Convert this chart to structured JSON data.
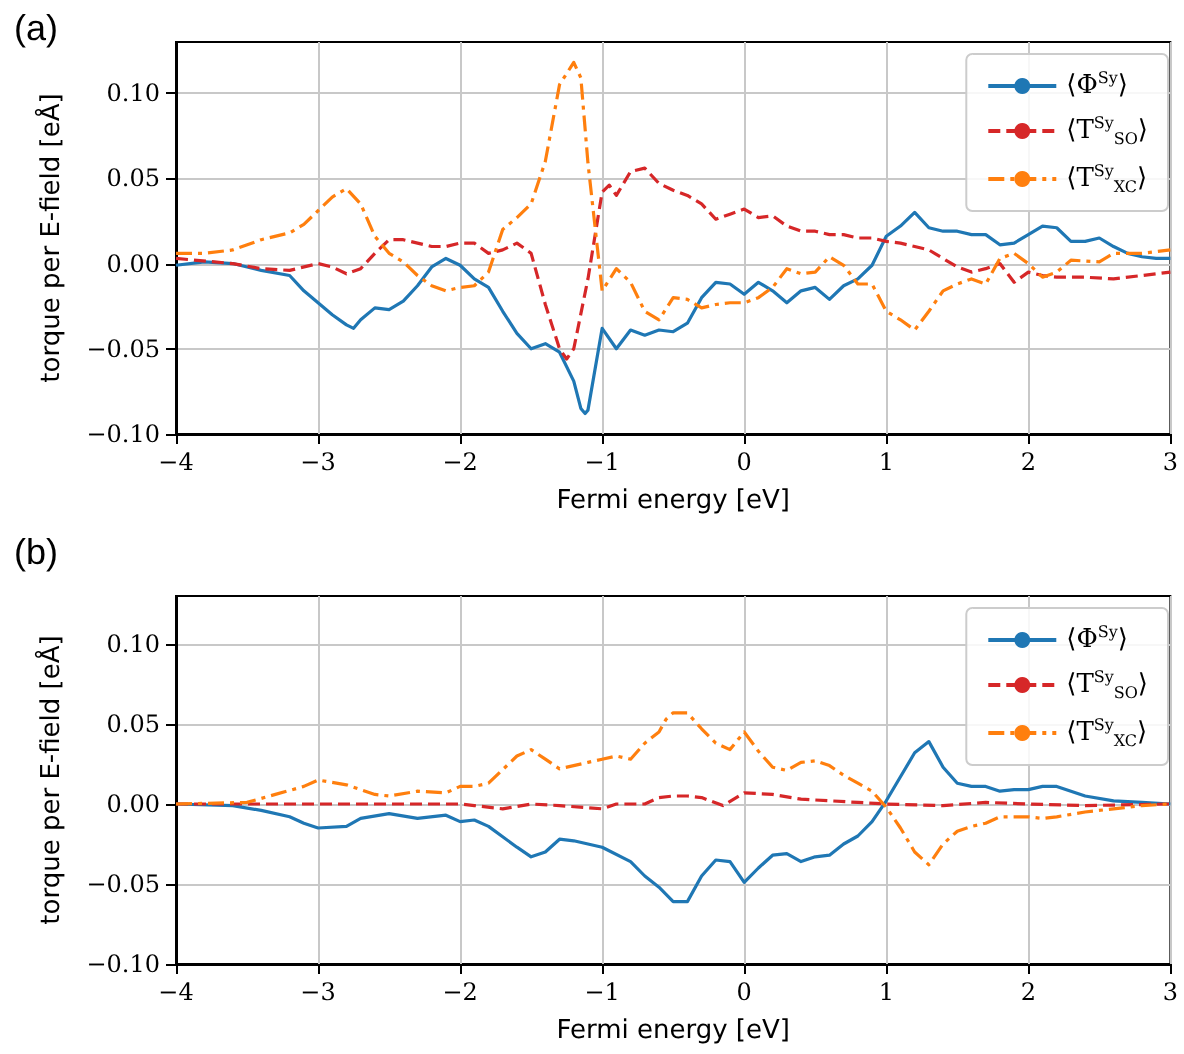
{
  "chart_data": [
    {
      "type": "line",
      "title": "(a)",
      "xlabel": "Fermi energy [eV]",
      "ylabel": "torque per E-field [eÅ]",
      "xlim": [
        -4,
        3
      ],
      "ylim": [
        -0.1,
        0.13
      ],
      "xticks": [
        {
          "value": -4,
          "label": "−4"
        },
        {
          "value": -3,
          "label": "−3"
        },
        {
          "value": -2,
          "label": "−2"
        },
        {
          "value": -1,
          "label": "−1"
        },
        {
          "value": 0,
          "label": "0"
        },
        {
          "value": 1,
          "label": "1"
        },
        {
          "value": 2,
          "label": "2"
        },
        {
          "value": 3,
          "label": "3"
        }
      ],
      "yticks": [
        {
          "value": -0.1,
          "label": "−0.10"
        },
        {
          "value": -0.05,
          "label": "−0.05"
        },
        {
          "value": 0,
          "label": "0.00"
        },
        {
          "value": 0.05,
          "label": "0.05"
        },
        {
          "value": 0.1,
          "label": "0.10"
        }
      ],
      "grid": true,
      "legend": "top right",
      "marker": "none",
      "series": [
        {
          "name": "⟨Φ$^{Sy}$⟩",
          "color": "#1f77b4",
          "line_style": "solid",
          "x": [
            -4,
            -3.8,
            -3.6,
            -3.4,
            -3.2,
            -3.1,
            -3,
            -2.9,
            -2.8,
            -2.75,
            -2.7,
            -2.6,
            -2.5,
            -2.4,
            -2.3,
            -2.2,
            -2.1,
            -2,
            -1.9,
            -1.8,
            -1.7,
            -1.6,
            -1.5,
            -1.4,
            -1.3,
            -1.2,
            -1.15,
            -1.12,
            -1.1,
            -1,
            -0.9,
            -0.8,
            -0.7,
            -0.6,
            -0.5,
            -0.4,
            -0.3,
            -0.2,
            -0.1,
            0,
            0.1,
            0.2,
            0.3,
            0.4,
            0.5,
            0.6,
            0.7,
            0.8,
            0.9,
            1,
            1.1,
            1.2,
            1.3,
            1.4,
            1.5,
            1.6,
            1.7,
            1.8,
            1.9,
            2,
            2.1,
            2.2,
            2.3,
            2.4,
            2.5,
            2.6,
            2.7,
            2.8,
            2.9,
            3
          ],
          "values": [
            -0.001,
            0.001,
            0,
            -0.004,
            -0.007,
            -0.016,
            -0.023,
            -0.03,
            -0.036,
            -0.038,
            -0.033,
            -0.026,
            -0.027,
            -0.022,
            -0.013,
            -0.002,
            0.003,
            -0.001,
            -0.009,
            -0.014,
            -0.028,
            -0.041,
            -0.05,
            -0.047,
            -0.052,
            -0.069,
            -0.085,
            -0.088,
            -0.086,
            -0.038,
            -0.05,
            -0.039,
            -0.042,
            -0.039,
            -0.04,
            -0.035,
            -0.02,
            -0.011,
            -0.012,
            -0.018,
            -0.011,
            -0.016,
            -0.023,
            -0.016,
            -0.014,
            -0.021,
            -0.013,
            -0.009,
            -0.001,
            0.016,
            0.022,
            0.03,
            0.021,
            0.019,
            0.019,
            0.017,
            0.017,
            0.011,
            0.012,
            0.017,
            0.022,
            0.021,
            0.013,
            0.013,
            0.015,
            0.01,
            0.006,
            0.004,
            0.003,
            0.003
          ]
        },
        {
          "name": "⟨T$^{Sy}$$_{SO}$⟩",
          "color": "#d62728",
          "line_style": "dashed",
          "x": [
            -4,
            -3.6,
            -3.4,
            -3.2,
            -3,
            -2.9,
            -2.8,
            -2.7,
            -2.6,
            -2.5,
            -2.4,
            -2.2,
            -2.1,
            -2,
            -1.9,
            -1.8,
            -1.7,
            -1.6,
            -1.5,
            -1.4,
            -1.3,
            -1.25,
            -1.2,
            -1.1,
            -1,
            -0.95,
            -0.9,
            -0.8,
            -0.7,
            -0.6,
            -0.5,
            -0.4,
            -0.3,
            -0.2,
            -0.1,
            0,
            0.1,
            0.2,
            0.3,
            0.4,
            0.5,
            0.6,
            0.7,
            0.8,
            0.9,
            1,
            1.1,
            1.2,
            1.3,
            1.4,
            1.5,
            1.6,
            1.7,
            1.8,
            1.9,
            2,
            2.1,
            2.2,
            2.4,
            2.6,
            2.8,
            3
          ],
          "values": [
            0.003,
            0,
            -0.003,
            -0.004,
            0,
            -0.002,
            -0.006,
            -0.003,
            0.006,
            0.014,
            0.014,
            0.01,
            0.01,
            0.012,
            0.012,
            0.006,
            0.008,
            0.012,
            0.006,
            -0.024,
            -0.05,
            -0.056,
            -0.05,
            -0.009,
            0.042,
            0.046,
            0.04,
            0.054,
            0.056,
            0.047,
            0.043,
            0.04,
            0.035,
            0.026,
            0.029,
            0.032,
            0.027,
            0.028,
            0.022,
            0.019,
            0.019,
            0.017,
            0.017,
            0.015,
            0.015,
            0.013,
            0.012,
            0.01,
            0.008,
            0.003,
            -0.002,
            -0.005,
            -0.003,
            0,
            -0.011,
            -0.005,
            -0.007,
            -0.008,
            -0.008,
            -0.009,
            -0.007,
            -0.005
          ]
        },
        {
          "name": "⟨T$^{Sy}$$_{XC}$⟩",
          "color": "#ff7f0e",
          "line_style": "dashdot",
          "x": [
            -4,
            -3.8,
            -3.6,
            -3.4,
            -3.2,
            -3.1,
            -3,
            -2.9,
            -2.8,
            -2.7,
            -2.6,
            -2.5,
            -2.4,
            -2.3,
            -2.2,
            -2.1,
            -2,
            -1.9,
            -1.8,
            -1.7,
            -1.6,
            -1.5,
            -1.4,
            -1.3,
            -1.2,
            -1.15,
            -1.1,
            -1,
            -0.9,
            -0.8,
            -0.7,
            -0.6,
            -0.5,
            -0.4,
            -0.3,
            -0.2,
            -0.1,
            0,
            0.1,
            0.2,
            0.3,
            0.4,
            0.5,
            0.6,
            0.7,
            0.8,
            0.9,
            1,
            1.1,
            1.2,
            1.3,
            1.4,
            1.5,
            1.6,
            1.7,
            1.8,
            1.9,
            2,
            2.1,
            2.2,
            2.3,
            2.5,
            2.6,
            2.8,
            3
          ],
          "values": [
            0.006,
            0.006,
            0.008,
            0.014,
            0.018,
            0.023,
            0.031,
            0.039,
            0.044,
            0.035,
            0.016,
            0.006,
            0.001,
            -0.007,
            -0.013,
            -0.016,
            -0.014,
            -0.013,
            -0.005,
            0.02,
            0.027,
            0.035,
            0.06,
            0.105,
            0.118,
            0.109,
            0.059,
            -0.016,
            -0.003,
            -0.011,
            -0.028,
            -0.033,
            -0.02,
            -0.021,
            -0.026,
            -0.024,
            -0.023,
            -0.023,
            -0.02,
            -0.014,
            -0.003,
            -0.006,
            -0.005,
            0.004,
            -0.001,
            -0.012,
            -0.012,
            -0.028,
            -0.033,
            -0.039,
            -0.028,
            -0.016,
            -0.012,
            -0.009,
            -0.012,
            0.003,
            0.006,
            0,
            -0.008,
            -0.005,
            0.002,
            0.001,
            0.006,
            0.006,
            0.008
          ]
        }
      ]
    },
    {
      "type": "line",
      "title": "(b)",
      "xlabel": "Fermi energy [eV]",
      "ylabel": "torque per E-field [eÅ]",
      "xlim": [
        -4,
        3
      ],
      "ylim": [
        -0.1,
        0.13
      ],
      "xticks": [
        {
          "value": -4,
          "label": "−4"
        },
        {
          "value": -3,
          "label": "−3"
        },
        {
          "value": -2,
          "label": "−2"
        },
        {
          "value": -1,
          "label": "−1"
        },
        {
          "value": 0,
          "label": "0"
        },
        {
          "value": 1,
          "label": "1"
        },
        {
          "value": 2,
          "label": "2"
        },
        {
          "value": 3,
          "label": "3"
        }
      ],
      "yticks": [
        {
          "value": -0.1,
          "label": "−0.10"
        },
        {
          "value": -0.05,
          "label": "−0.05"
        },
        {
          "value": 0,
          "label": "0.00"
        },
        {
          "value": 0.05,
          "label": "0.05"
        },
        {
          "value": 0.1,
          "label": "0.10"
        }
      ],
      "grid": true,
      "legend": "top right",
      "marker": "none",
      "series": [
        {
          "name": "⟨Φ$^{Sy}$⟩",
          "color": "#1f77b4",
          "line_style": "solid",
          "x": [
            -4,
            -3.6,
            -3.4,
            -3.2,
            -3.1,
            -3,
            -2.8,
            -2.7,
            -2.5,
            -2.3,
            -2.1,
            -2,
            -1.9,
            -1.8,
            -1.6,
            -1.5,
            -1.4,
            -1.3,
            -1.2,
            -1,
            -0.8,
            -0.7,
            -0.6,
            -0.5,
            -0.4,
            -0.3,
            -0.2,
            -0.1,
            0,
            0.1,
            0.2,
            0.3,
            0.4,
            0.5,
            0.6,
            0.7,
            0.8,
            0.9,
            1,
            1.1,
            1.2,
            1.3,
            1.4,
            1.5,
            1.6,
            1.7,
            1.8,
            1.9,
            2,
            2.1,
            2.2,
            2.3,
            2.4,
            2.6,
            2.8,
            3
          ],
          "values": [
            0,
            -0.001,
            -0.004,
            -0.008,
            -0.012,
            -0.015,
            -0.014,
            -0.009,
            -0.006,
            -0.009,
            -0.007,
            -0.011,
            -0.01,
            -0.014,
            -0.027,
            -0.033,
            -0.03,
            -0.022,
            -0.023,
            -0.027,
            -0.036,
            -0.045,
            -0.052,
            -0.061,
            -0.061,
            -0.045,
            -0.035,
            -0.036,
            -0.049,
            -0.04,
            -0.032,
            -0.031,
            -0.036,
            -0.033,
            -0.032,
            -0.025,
            -0.02,
            -0.011,
            0.002,
            0.017,
            0.032,
            0.039,
            0.023,
            0.013,
            0.011,
            0.011,
            0.008,
            0.009,
            0.009,
            0.011,
            0.011,
            0.008,
            0.005,
            0.002,
            0.001,
            0
          ]
        },
        {
          "name": "⟨T$^{Sy}$$_{SO}$⟩",
          "color": "#d62728",
          "line_style": "dashed",
          "x": [
            -4,
            -3,
            -2,
            -1.9,
            -1.7,
            -1.5,
            -1.3,
            -1,
            -0.9,
            -0.7,
            -0.6,
            -0.5,
            -0.4,
            -0.3,
            -0.15,
            0,
            0.2,
            0.4,
            0.6,
            0.8,
            1,
            1.4,
            1.7,
            2,
            2.4,
            3
          ],
          "values": [
            0,
            0,
            0,
            -0.001,
            -0.003,
            0,
            -0.001,
            -0.003,
            0,
            0,
            0.004,
            0.005,
            0.005,
            0.004,
            -0.001,
            0.007,
            0.006,
            0.003,
            0.002,
            0.001,
            0,
            -0.001,
            0.001,
            0,
            -0.001,
            0
          ]
        },
        {
          "name": "⟨T$^{Sy}$$_{XC}$⟩",
          "color": "#ff7f0e",
          "line_style": "dashdot",
          "x": [
            -4,
            -3.5,
            -3.3,
            -3.1,
            -3,
            -2.8,
            -2.6,
            -2.5,
            -2.3,
            -2.1,
            -2,
            -1.9,
            -1.8,
            -1.6,
            -1.5,
            -1.4,
            -1.3,
            -1.1,
            -1,
            -0.9,
            -0.8,
            -0.7,
            -0.6,
            -0.55,
            -0.5,
            -0.4,
            -0.3,
            -0.2,
            -0.1,
            0,
            0.1,
            0.2,
            0.3,
            0.4,
            0.5,
            0.6,
            0.7,
            0.8,
            0.9,
            1,
            1.1,
            1.2,
            1.3,
            1.4,
            1.5,
            1.6,
            1.7,
            1.8,
            2,
            2.1,
            2.2,
            2.4,
            2.6,
            2.8,
            3
          ],
          "values": [
            0,
            0.001,
            0.006,
            0.011,
            0.015,
            0.012,
            0.006,
            0.005,
            0.008,
            0.007,
            0.011,
            0.011,
            0.013,
            0.03,
            0.034,
            0.028,
            0.022,
            0.026,
            0.028,
            0.03,
            0.028,
            0.038,
            0.045,
            0.053,
            0.057,
            0.057,
            0.047,
            0.038,
            0.034,
            0.045,
            0.033,
            0.023,
            0.021,
            0.026,
            0.027,
            0.024,
            0.018,
            0.013,
            0.008,
            -0.002,
            -0.015,
            -0.03,
            -0.038,
            -0.025,
            -0.017,
            -0.014,
            -0.012,
            -0.008,
            -0.008,
            -0.009,
            -0.008,
            -0.005,
            -0.003,
            -0.001,
            0
          ]
        }
      ]
    }
  ]
}
